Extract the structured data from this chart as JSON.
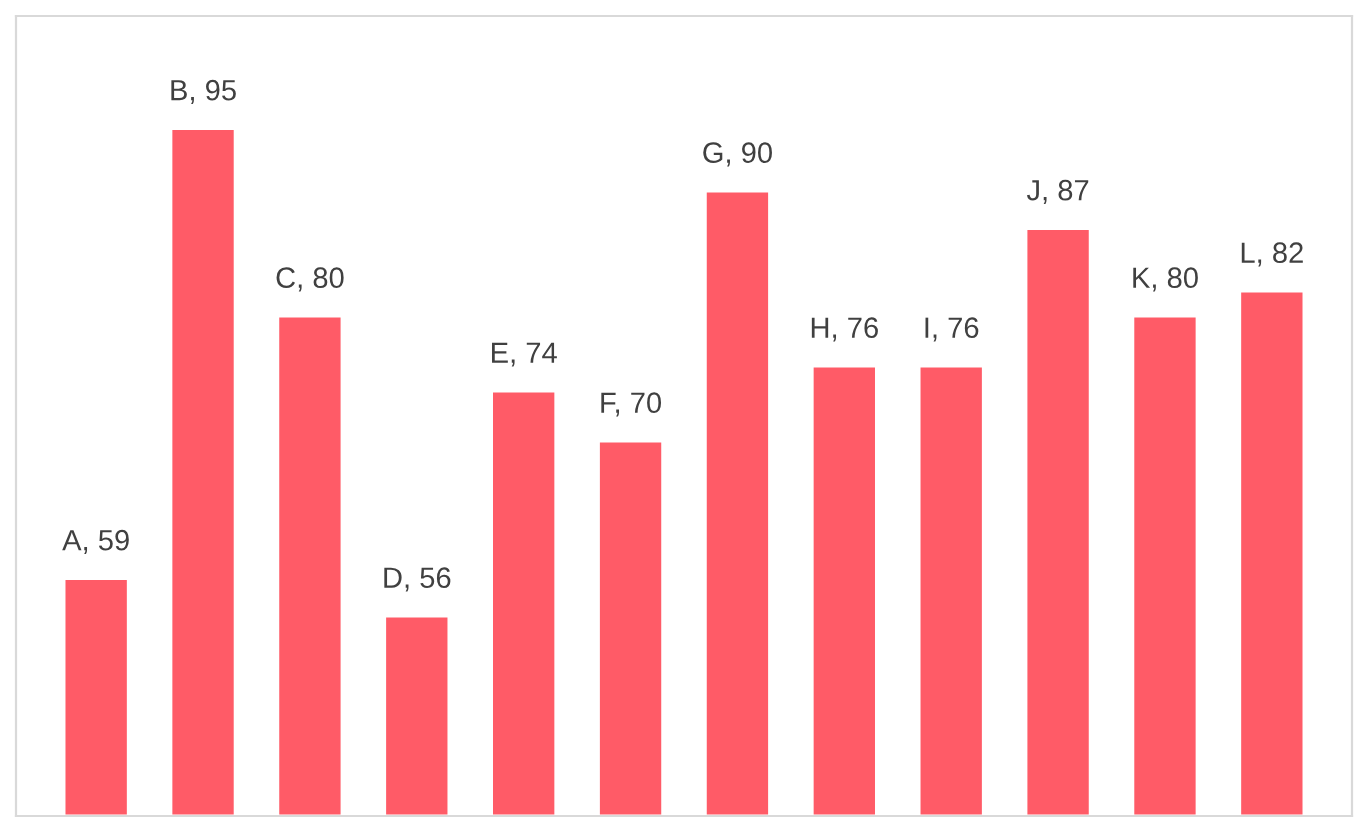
{
  "chart_data": {
    "type": "bar",
    "categories": [
      null,
      null,
      null,
      null,
      null,
      null,
      null,
      null,
      null,
      null,
      null,
      null
    ],
    "values": [
      59,
      95,
      80,
      56,
      74,
      70,
      90,
      76,
      76,
      87,
      80,
      82
    ],
    "value_labels": [
      "A, 59",
      "B, 95",
      "C, 80",
      "D, 56",
      "E, 74",
      "F, 70",
      "G, 90",
      "H, 76",
      "I, 76",
      "J, 87",
      "K, 80",
      "L, 82"
    ],
    "color": "#ff5b67",
    "ylim": [
      40,
      104
    ],
    "tick_labels": false,
    "grid": false,
    "legend": false
  }
}
